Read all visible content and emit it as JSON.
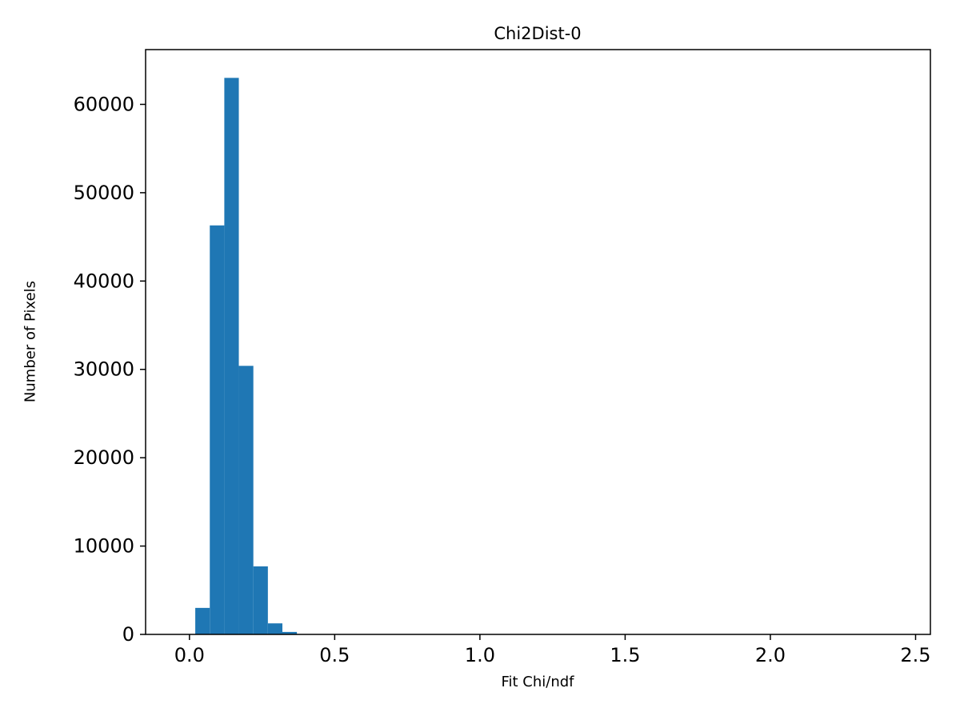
{
  "figure": {
    "title": "Chi2Dist-0",
    "xlabel": "Fit Chi/ndf",
    "ylabel": "Number of Pixels"
  },
  "chart_data": {
    "type": "bar",
    "subtype": "histogram",
    "title": "Chi2Dist-0",
    "xlabel": "Fit Chi/ndf",
    "ylabel": "Number of Pixels",
    "bin_edges": [
      0.02,
      0.07,
      0.12,
      0.17,
      0.22,
      0.27,
      0.32,
      0.37
    ],
    "counts": [
      3000,
      46300,
      63000,
      30400,
      7700,
      1250,
      280
    ],
    "xlim": [
      -0.151,
      2.551
    ],
    "ylim": [
      0,
      66200
    ],
    "xticks": [
      0.0,
      0.5,
      1.0,
      1.5,
      2.0,
      2.5
    ],
    "xtick_labels": [
      "0.0",
      "0.5",
      "1.0",
      "1.5",
      "2.0",
      "2.5"
    ],
    "yticks": [
      0,
      10000,
      20000,
      30000,
      40000,
      50000,
      60000
    ],
    "ytick_labels": [
      "0",
      "10000",
      "20000",
      "30000",
      "40000",
      "50000",
      "60000"
    ],
    "bar_color": "#1f77b4",
    "spine_color": "#000000",
    "text_color": "#000000",
    "background": "#ffffff",
    "grid": false,
    "legend": null
  }
}
